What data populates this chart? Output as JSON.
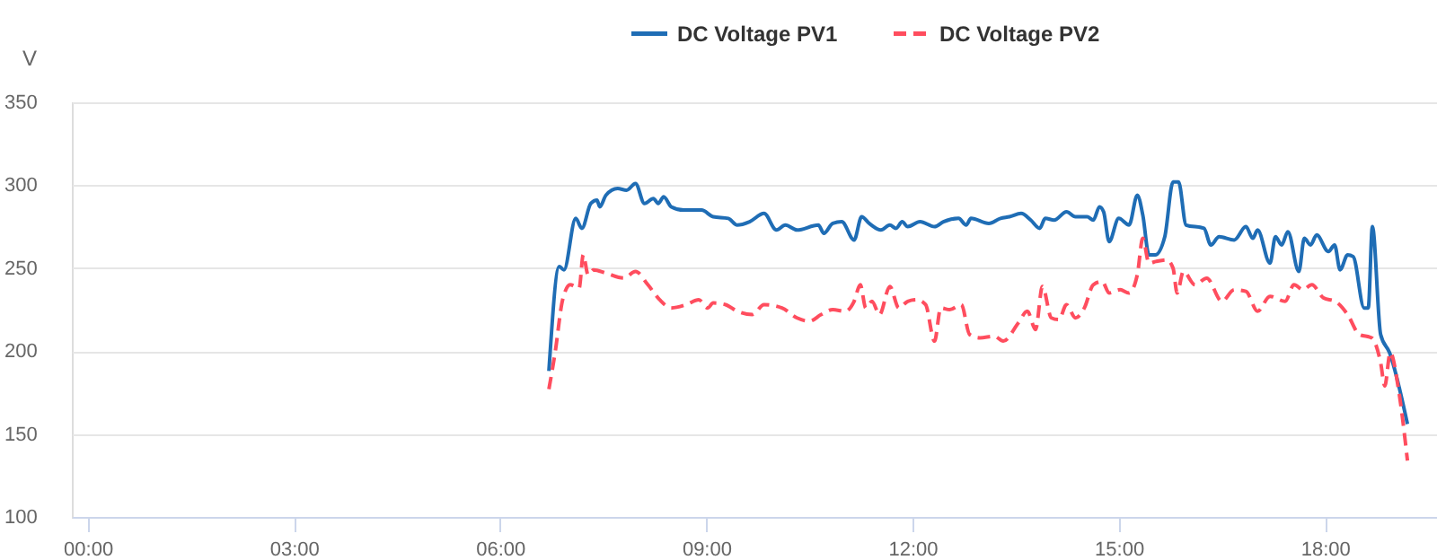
{
  "chart_data": {
    "type": "line",
    "ylabel": "V",
    "legend": "top",
    "grid": "y",
    "marker": "none",
    "xlim": [
      -0.23,
      19.63
    ],
    "xticks": [
      {
        "value": 0,
        "label": "00:00"
      },
      {
        "value": 3,
        "label": "03:00"
      },
      {
        "value": 6,
        "label": "06:00"
      },
      {
        "value": 9,
        "label": "09:00"
      },
      {
        "value": 12,
        "label": "12:00"
      },
      {
        "value": 15,
        "label": "15:00"
      },
      {
        "value": 18,
        "label": "18:00"
      }
    ],
    "ylim": [
      100,
      350
    ],
    "yticks": [
      100,
      150,
      200,
      250,
      300,
      350
    ],
    "series": [
      {
        "name": "DC Voltage PV1",
        "color": "#1f6db5",
        "line_style": "solid",
        "x": [
          6.71,
          6.86,
          6.93,
          7.1,
          7.19,
          7.32,
          7.41,
          7.45,
          7.54,
          7.71,
          7.84,
          7.97,
          8.1,
          8.23,
          8.3,
          8.38,
          8.49,
          8.67,
          8.93,
          9.1,
          9.32,
          9.45,
          9.63,
          9.84,
          10.02,
          10.15,
          10.32,
          10.63,
          10.71,
          10.84,
          10.97,
          11.15,
          11.26,
          11.37,
          11.54,
          11.67,
          11.76,
          11.85,
          11.93,
          12.11,
          12.32,
          12.45,
          12.67,
          12.78,
          12.85,
          13.11,
          13.28,
          13.41,
          13.58,
          13.72,
          13.85,
          13.93,
          14.06,
          14.24,
          14.37,
          14.54,
          14.63,
          14.72,
          14.78,
          14.86,
          15.0,
          15.15,
          15.27,
          15.35,
          15.44,
          15.53,
          15.67,
          15.79,
          15.87,
          15.98,
          16.24,
          16.34,
          16.46,
          16.68,
          16.85,
          16.95,
          17.02,
          17.2,
          17.28,
          17.37,
          17.46,
          17.62,
          17.7,
          17.79,
          17.88,
          18.05,
          18.14,
          18.22,
          18.33,
          18.41,
          18.57,
          18.63,
          18.69,
          18.81,
          18.94,
          19.2
        ],
        "values": [
          188,
          251,
          249,
          280,
          274,
          289,
          291,
          287,
          294,
          298,
          297,
          301,
          289,
          292,
          289,
          293,
          287,
          285,
          285,
          281,
          280,
          276,
          278,
          283,
          273,
          276,
          273,
          276,
          271,
          277,
          278,
          267,
          281,
          277,
          273,
          276,
          274,
          278,
          275,
          278,
          275,
          278,
          280,
          276,
          280,
          277,
          280,
          281,
          283,
          279,
          274,
          280,
          279,
          284,
          281,
          281,
          279,
          287,
          284,
          266,
          280,
          276,
          294,
          282,
          258,
          258,
          269,
          302,
          302,
          276,
          274,
          264,
          269,
          267,
          275,
          268,
          273,
          253,
          269,
          264,
          272,
          248,
          268,
          264,
          270,
          260,
          264,
          249,
          258,
          257,
          226,
          226,
          275,
          210,
          199,
          156
        ]
      },
      {
        "name": "DC Voltage PV2",
        "color": "#ff4d5e",
        "line_style": "dashed",
        "x": [
          6.71,
          6.8,
          6.91,
          7.02,
          7.15,
          7.21,
          7.28,
          7.36,
          7.54,
          7.8,
          7.97,
          8.15,
          8.32,
          8.49,
          8.71,
          8.89,
          9.02,
          9.1,
          9.28,
          9.45,
          9.67,
          9.84,
          10.1,
          10.32,
          10.5,
          10.67,
          10.84,
          11.02,
          11.15,
          11.24,
          11.32,
          11.41,
          11.52,
          11.67,
          11.8,
          11.93,
          12.06,
          12.19,
          12.32,
          12.41,
          12.54,
          12.71,
          12.83,
          12.98,
          13.19,
          13.32,
          13.54,
          13.67,
          13.79,
          13.89,
          14.02,
          14.13,
          14.24,
          14.37,
          14.5,
          14.63,
          14.76,
          14.86,
          15.02,
          15.15,
          15.27,
          15.35,
          15.44,
          15.54,
          15.7,
          15.79,
          15.85,
          15.94,
          16.11,
          16.28,
          16.5,
          16.68,
          16.85,
          17.02,
          17.2,
          17.42,
          17.55,
          17.68,
          17.81,
          17.98,
          18.15,
          18.33,
          18.5,
          18.68,
          18.81,
          18.87,
          18.95,
          19.07,
          19.2
        ],
        "values": [
          177,
          199,
          231,
          240,
          238,
          258,
          246,
          249,
          247,
          244,
          248,
          240,
          231,
          226,
          228,
          231,
          226,
          229,
          228,
          224,
          222,
          228,
          226,
          220,
          218,
          222,
          225,
          224,
          230,
          240,
          226,
          230,
          222,
          239,
          226,
          230,
          231,
          228,
          206,
          226,
          225,
          228,
          210,
          208,
          209,
          206,
          217,
          224,
          213,
          239,
          220,
          219,
          228,
          220,
          226,
          240,
          242,
          235,
          237,
          235,
          246,
          268,
          253,
          254,
          255,
          250,
          235,
          248,
          240,
          244,
          230,
          237,
          236,
          224,
          233,
          230,
          240,
          237,
          240,
          232,
          230,
          222,
          210,
          208,
          193,
          179,
          199,
          177,
          134
        ]
      }
    ]
  }
}
